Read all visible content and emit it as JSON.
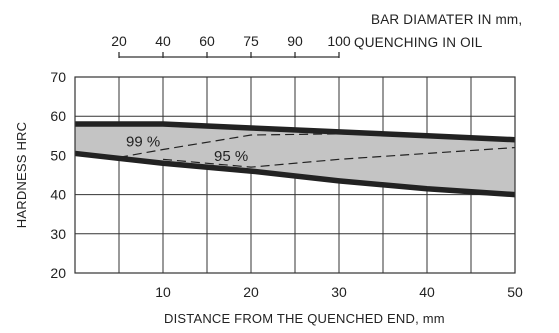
{
  "chart_data": {
    "type": "area",
    "xlabel": "DISTANCE FROM THE QUENCHED END, mm",
    "ylabel": "HARDNESS HRC",
    "xlim": [
      0,
      50
    ],
    "ylim": [
      20,
      70
    ],
    "x_ticks": [
      10,
      20,
      30,
      40,
      50
    ],
    "y_ticks": [
      20,
      30,
      40,
      50,
      60,
      70
    ],
    "grid": true,
    "colors": {
      "band": "#c4c4c4",
      "bounds": "#222222",
      "grid": "#333333"
    },
    "top_axis": {
      "label_line1": "BAR DIAMATER IN mm,",
      "label_line2": "QUENCHING IN OIL",
      "ticks": [
        {
          "label": "20",
          "x": 5
        },
        {
          "label": "40",
          "x": 10
        },
        {
          "label": "60",
          "x": 15
        },
        {
          "label": "75",
          "x": 20
        },
        {
          "label": "90",
          "x": 25
        },
        {
          "label": "100",
          "x": 30
        }
      ]
    },
    "series": [
      {
        "role": "upper-bound",
        "x": [
          0,
          10,
          20,
          30,
          40,
          50
        ],
        "y": [
          58,
          58,
          57,
          56,
          55,
          54
        ]
      },
      {
        "role": "lower-bound",
        "x": [
          0,
          10,
          20,
          30,
          40,
          50
        ],
        "y": [
          50.5,
          48,
          46,
          43.5,
          41.5,
          40
        ]
      },
      {
        "name": "99 %",
        "x": [
          5,
          10,
          20,
          30,
          40,
          50
        ],
        "y": [
          49.5,
          51.5,
          55.2,
          55.5,
          55,
          54
        ]
      },
      {
        "name": "95 %",
        "x": [
          10,
          20,
          30,
          40,
          50
        ],
        "y": [
          49,
          47,
          49,
          50.5,
          52
        ]
      }
    ],
    "annotations": [
      {
        "text": "99 %",
        "x": 5.8,
        "y": 53.5
      },
      {
        "text": "95 %",
        "x": 15.8,
        "y": 49.8
      }
    ]
  }
}
